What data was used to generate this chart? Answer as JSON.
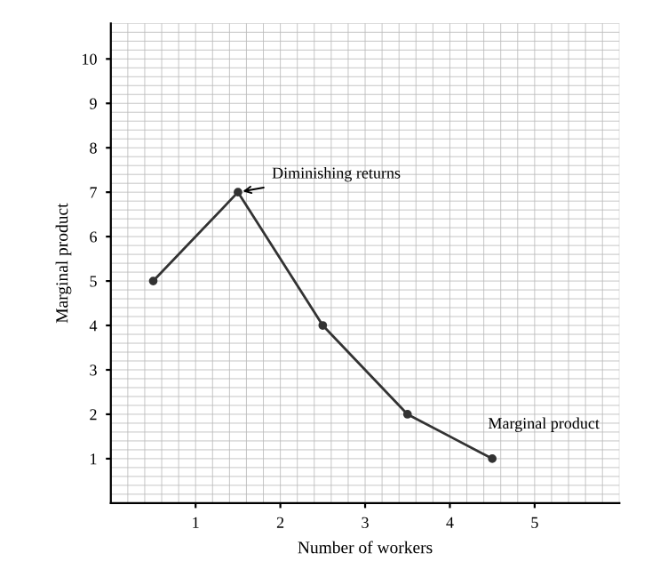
{
  "chart_data": {
    "type": "line",
    "xlabel": "Number of workers",
    "ylabel": "Marginal product",
    "x": [
      0.5,
      1.5,
      2.5,
      3.5,
      4.5
    ],
    "series": [
      {
        "name": "Marginal product",
        "color": "#333333",
        "values": [
          5,
          7,
          4,
          2,
          1
        ]
      }
    ],
    "annotations": [
      {
        "text": "Diminishing returns",
        "x": 1.5,
        "y": 7
      }
    ],
    "xlim": [
      0,
      6
    ],
    "ylim": [
      0,
      10.8
    ],
    "xticks": [
      1,
      2,
      3,
      4,
      5
    ],
    "yticks": [
      1,
      2,
      3,
      4,
      5,
      6,
      7,
      8,
      9,
      10
    ],
    "grid": true,
    "marker": "circle",
    "line_style": "solid",
    "legend": false
  }
}
